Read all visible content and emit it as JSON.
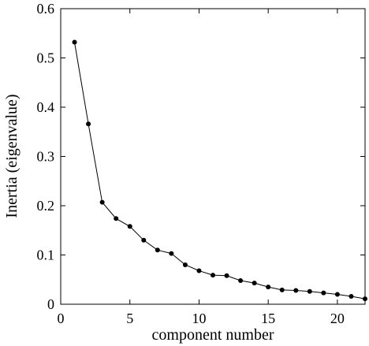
{
  "chart_data": {
    "type": "line",
    "title": "",
    "xlabel": "component number",
    "ylabel": "Inertia (eigenvalue)",
    "xlim": [
      0,
      22
    ],
    "ylim": [
      0,
      0.6
    ],
    "xticks": [
      0,
      5,
      10,
      15,
      20
    ],
    "yticks": [
      0,
      0.1,
      0.2,
      0.3,
      0.4,
      0.5,
      0.6
    ],
    "xtick_labels": [
      "0",
      "5",
      "10",
      "15",
      "20"
    ],
    "ytick_labels": [
      "0",
      "0.1",
      "0.2",
      "0.3",
      "0.4",
      "0.5",
      "0.6"
    ],
    "grid": false,
    "legend": "none",
    "series": [
      {
        "x": [
          1,
          2,
          3,
          4,
          5,
          6,
          7,
          8,
          9,
          10,
          11,
          12,
          13,
          14,
          15,
          16,
          17,
          18,
          19,
          20,
          21,
          22
        ],
        "values": [
          0.532,
          0.366,
          0.207,
          0.174,
          0.158,
          0.13,
          0.11,
          0.103,
          0.08,
          0.068,
          0.059,
          0.058,
          0.048,
          0.043,
          0.035,
          0.029,
          0.028,
          0.026,
          0.023,
          0.02,
          0.016,
          0.011
        ],
        "color": "#000000",
        "marker": "circle"
      }
    ]
  }
}
